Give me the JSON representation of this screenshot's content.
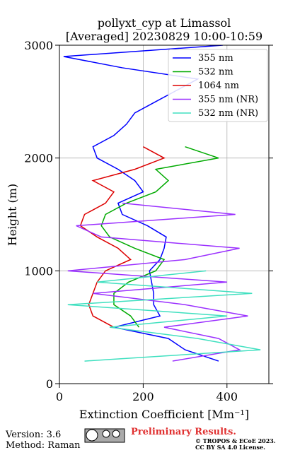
{
  "chart_data": {
    "type": "line",
    "title": "pollyxt_cyp at Limassol",
    "subtitle": "[Averaged] 20230829 10:00-10:59",
    "x_label": "Extinction Coefficient [Mm⁻¹]",
    "y_label": "Height (m)",
    "y": [
      200,
      300,
      400,
      500,
      600,
      700,
      800,
      900,
      1000,
      1100,
      1200,
      1300,
      1400,
      1500,
      1600,
      1700,
      1800,
      1900,
      2000,
      2100,
      2200,
      2300,
      2400,
      2500,
      2600,
      2700,
      2800,
      2900,
      3000
    ],
    "series": [
      {
        "name": "355 nm",
        "color": "#0000ff",
        "values": [
          380,
          300,
          260,
          130,
          240,
          225,
          225,
          220,
          215,
          240,
          250,
          255,
          210,
          150,
          140,
          200,
          180,
          140,
          90,
          80,
          130,
          160,
          180,
          230,
          280,
          330,
          150,
          10,
          390
        ]
      },
      {
        "name": "532 nm",
        "color": "#00aa00",
        "values": [
          null,
          null,
          null,
          190,
          170,
          130,
          130,
          165,
          230,
          250,
          180,
          120,
          100,
          110,
          160,
          230,
          260,
          230,
          380,
          300,
          null,
          null,
          null,
          null,
          null,
          null,
          null,
          null,
          null
        ]
      },
      {
        "name": "1064 nm",
        "color": "#dd0000",
        "values": [
          null,
          null,
          null,
          130,
          80,
          70,
          80,
          90,
          110,
          170,
          140,
          90,
          50,
          60,
          110,
          130,
          80,
          180,
          250,
          200,
          null,
          null,
          null,
          null,
          null,
          null,
          null,
          null,
          null
        ]
      },
      {
        "name": "355 nm (NR)",
        "color": "#9b30ff",
        "values": [
          270,
          430,
          380,
          250,
          450,
          300,
          80,
          400,
          20,
          300,
          430,
          100,
          40,
          420,
          150,
          null,
          null,
          null,
          null,
          null,
          null,
          null,
          null,
          null,
          null,
          null,
          null,
          null,
          null
        ]
      },
      {
        "name": "532 nm (NR)",
        "color": "#40e0c0",
        "values": [
          60,
          480,
          330,
          120,
          400,
          20,
          460,
          90,
          350,
          null,
          null,
          null,
          null,
          null,
          null,
          null,
          null,
          null,
          null,
          null,
          null,
          null,
          null,
          null,
          null,
          null,
          null,
          null,
          null
        ]
      }
    ],
    "xlim": [
      0,
      500
    ],
    "ylim": [
      0,
      3000
    ],
    "xticks": [
      0,
      200,
      400
    ],
    "yticks": [
      0,
      1000,
      2000,
      3000
    ],
    "grid": true,
    "legend": "upper right",
    "footer": {
      "version": "Version: 3.6",
      "method": "Method: Raman",
      "status": "Preliminary Results.",
      "copyright": "© TROPOS & ECoE 2023.",
      "license": "CC BY SA 4.0 License."
    }
  }
}
